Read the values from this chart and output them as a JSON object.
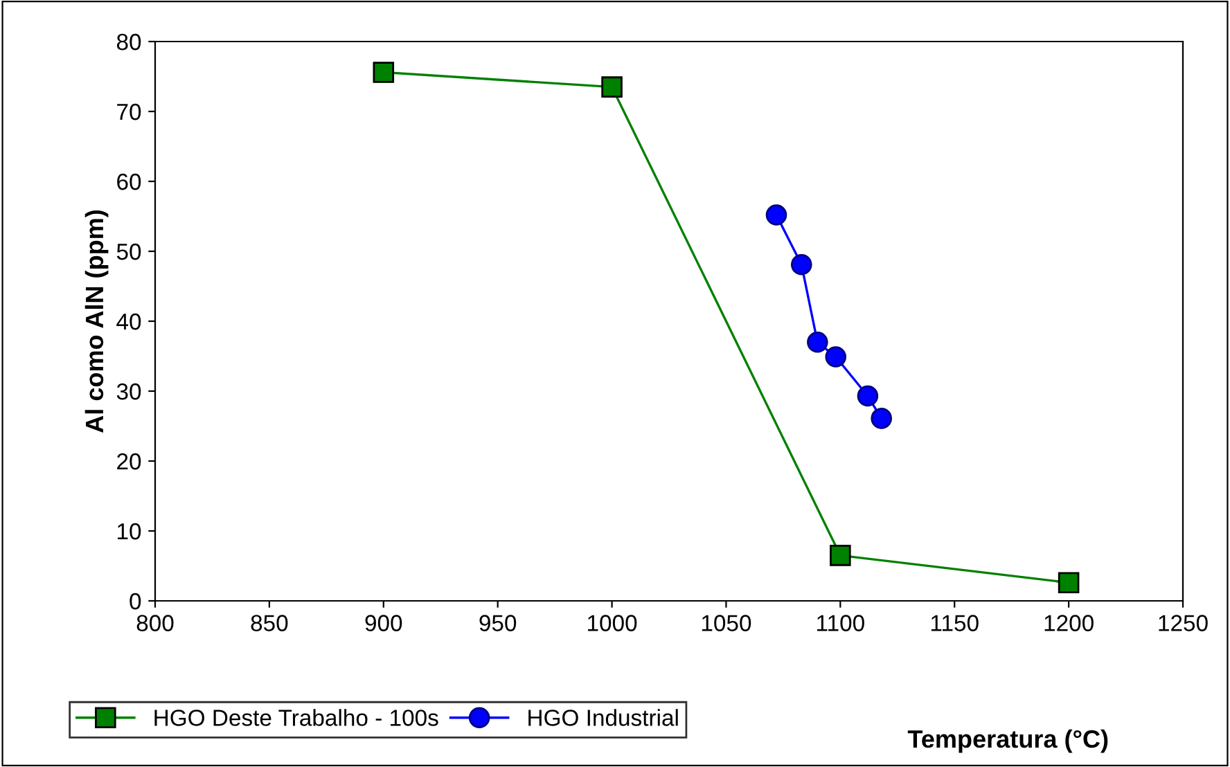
{
  "chart_data": {
    "type": "line",
    "xlabel": "Temperatura (°C)",
    "ylabel": "Al como AlN (ppm)",
    "xlim": [
      800,
      1250
    ],
    "xticks": [
      800,
      850,
      900,
      950,
      1000,
      1050,
      1100,
      1150,
      1200,
      1250
    ],
    "ylim": [
      0,
      80
    ],
    "yticks": [
      0,
      10,
      20,
      30,
      40,
      50,
      60,
      70,
      80
    ],
    "grid": false,
    "legend": "bottom left",
    "series": [
      {
        "name": "HGO Deste Trabalho - 100s",
        "color": "#008000",
        "marker": "square",
        "x": [
          900,
          1000,
          1100,
          1200
        ],
        "values": [
          75.6,
          73.5,
          6.5,
          2.6
        ]
      },
      {
        "name": "HGO Industrial",
        "color": "#0000ff",
        "marker": "circle",
        "x": [
          1072,
          1083,
          1090,
          1098,
          1112,
          1118
        ],
        "values": [
          55.2,
          48.1,
          37.0,
          34.9,
          29.3,
          26.1
        ]
      }
    ]
  }
}
